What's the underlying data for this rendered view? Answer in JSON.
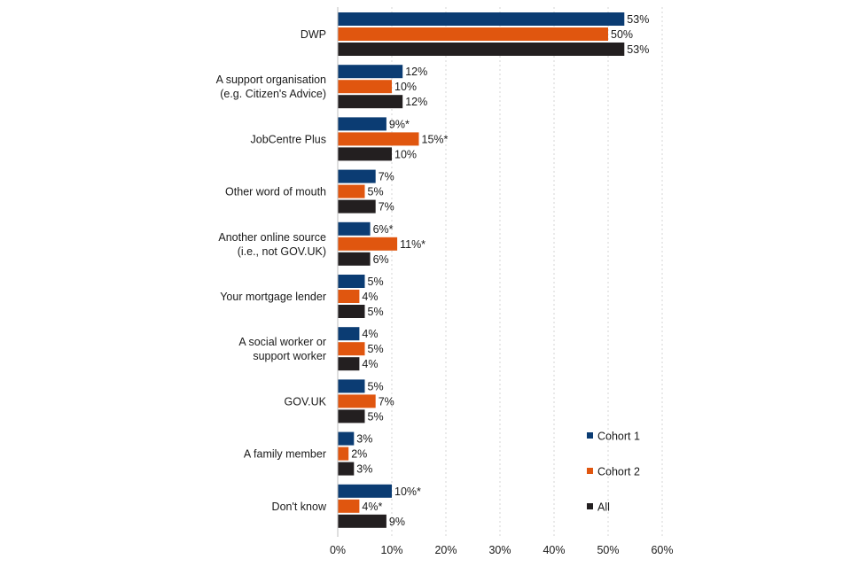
{
  "chart_data": {
    "type": "bar",
    "orientation": "horizontal",
    "categories": [
      [
        "DWP"
      ],
      [
        "A support organisation",
        "(e.g. Citizen's Advice)"
      ],
      [
        "JobCentre Plus"
      ],
      [
        "Other word of mouth"
      ],
      [
        "Another online source",
        "(i.e., not GOV.UK)"
      ],
      [
        "Your mortgage lender"
      ],
      [
        "A social worker or",
        "support worker"
      ],
      [
        "GOV.UK"
      ],
      [
        "A family member"
      ],
      [
        "Don't know"
      ]
    ],
    "series": [
      {
        "name": "Cohort 1",
        "color": "#0b3c73",
        "values": [
          53,
          12,
          9,
          7,
          6,
          5,
          4,
          5,
          3,
          10
        ],
        "labels": [
          "53%",
          "12%",
          "9%*",
          "7%",
          "6%*",
          "5%",
          "4%",
          "5%",
          "3%",
          "10%*"
        ]
      },
      {
        "name": "Cohort 2",
        "color": "#e0560f",
        "values": [
          50,
          10,
          15,
          5,
          11,
          4,
          5,
          7,
          2,
          4
        ],
        "labels": [
          "50%",
          "10%",
          "15%*",
          "5%",
          "11%*",
          "4%",
          "5%",
          "7%",
          "2%",
          "4%*"
        ]
      },
      {
        "name": "All",
        "color": "#231f20",
        "values": [
          53,
          12,
          10,
          7,
          6,
          5,
          4,
          5,
          3,
          9
        ],
        "labels": [
          "53%",
          "12%",
          "10%",
          "7%",
          "6%",
          "5%",
          "4%",
          "5%",
          "3%",
          "9%"
        ]
      }
    ],
    "xlim": [
      0,
      60
    ],
    "xticks": [
      0,
      10,
      20,
      30,
      40,
      50,
      60
    ],
    "xtick_labels": [
      "0%",
      "10%",
      "20%",
      "30%",
      "40%",
      "50%",
      "60%"
    ],
    "grid": "vertical dotted",
    "legend": "bottom-right"
  }
}
